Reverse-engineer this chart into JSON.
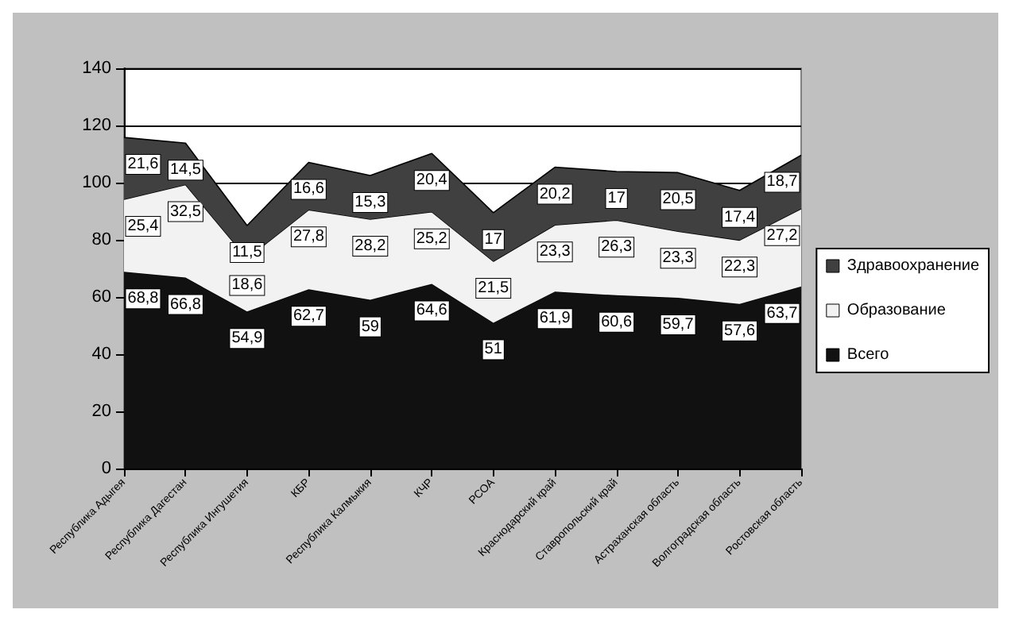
{
  "chart_data": {
    "type": "area",
    "stacked": true,
    "categories": [
      "Республика Адыгея",
      "Республика Дагестан",
      "Республика Ингушетия",
      "КБР",
      "Республика Калмыкия",
      "КЧР",
      "РСОА",
      "Краснодарский край",
      "Ставропольский край",
      "Астраханская область",
      "Волгоградская область",
      "Ростовская область"
    ],
    "series": [
      {
        "name": "Всего",
        "color": "#111111",
        "values": [
          68.8,
          66.8,
          54.9,
          62.7,
          59,
          64.6,
          51,
          61.9,
          60.6,
          59.7,
          57.6,
          63.7
        ],
        "value_labels": [
          "68,8",
          "66,8",
          "54,9",
          "62,7",
          "59",
          "64,6",
          "51",
          "61,9",
          "60,6",
          "59,7",
          "57,6",
          "63,7"
        ]
      },
      {
        "name": "Образование",
        "color": "#f2f2f2",
        "values": [
          25.4,
          32.5,
          18.6,
          27.8,
          28.2,
          25.2,
          21.5,
          23.3,
          26.3,
          23.3,
          22.3,
          27.2
        ],
        "value_labels": [
          "25,4",
          "32,5",
          "18,6",
          "27,8",
          "28,2",
          "25,2",
          "21,5",
          "23,3",
          "26,3",
          "23,3",
          "22,3",
          "27,2"
        ]
      },
      {
        "name": "Здравоохранение",
        "color": "#404040",
        "values": [
          21.6,
          14.5,
          11.5,
          16.6,
          15.3,
          20.4,
          17,
          20.2,
          17,
          20.5,
          17.4,
          18.7
        ],
        "value_labels": [
          "21,6",
          "14,5",
          "11,5",
          "16,6",
          "15,3",
          "20,4",
          "17",
          "20,2",
          "17",
          "20,5",
          "17,4",
          "18,7"
        ]
      }
    ],
    "ylim": [
      0,
      140
    ],
    "yticks": [
      0,
      20,
      40,
      60,
      80,
      100,
      120,
      140
    ],
    "grid": "y",
    "legend": "right"
  }
}
